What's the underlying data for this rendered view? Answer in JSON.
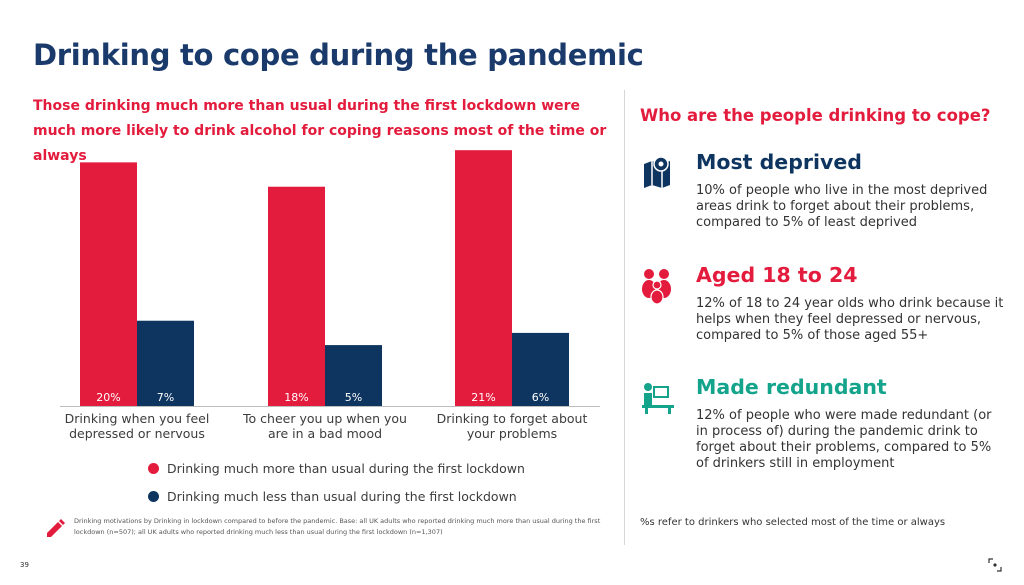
{
  "title": "Drinking to cope during the pandemic",
  "subtitle": "Those drinking much more than usual during the first lockdown were much more likely to drink alcohol for coping reasons most of the time or always",
  "chart_data": {
    "type": "bar",
    "categories": [
      [
        "Drinking when you feel",
        "depressed or nervous"
      ],
      [
        "To cheer you up when you",
        "are in a bad mood"
      ],
      [
        "Drinking to forget about",
        "your problems"
      ]
    ],
    "series": [
      {
        "name": "Drinking much more than usual during the first lockdown",
        "values": [
          20,
          18,
          21
        ],
        "labels": [
          "20%",
          "18%",
          "21%"
        ],
        "color": "#e31b3c"
      },
      {
        "name": "Drinking much less than usual during the first lockdown",
        "values": [
          7,
          5,
          6
        ],
        "labels": [
          "7%",
          "5%",
          "6%"
        ],
        "color": "#0e355f"
      }
    ],
    "ylim": [
      0,
      22
    ],
    "grid": false,
    "legend_position": "bottom"
  },
  "legend": [
    {
      "label": "Drinking much more than usual during the first lockdown",
      "color": "#e31b3c"
    },
    {
      "label": "Drinking much less than usual during the first lockdown",
      "color": "#0e355f"
    }
  ],
  "footnote": "Drinking motivations by Drinking in lockdown compared to before the pandemic. Base: all UK adults who reported drinking much more than usual during the first lockdown (n=507); all UK adults who reported drinking much less than usual during the first lockdown (n=1,307)",
  "page_number": "39",
  "right_panel": {
    "heading": "Who are the people drinking to cope?",
    "items": [
      {
        "title": "Most deprived",
        "text": "10% of people who live in the most deprived areas drink to forget about their problems, compared to 5% of least deprived",
        "icon": "map-pin-icon",
        "color": "#0e355f"
      },
      {
        "title": "Aged 18 to 24",
        "text": "12% of 18 to 24 year olds who drink because it helps when they feel depressed or nervous, compared to 5% of those aged 55+",
        "icon": "people-group-icon",
        "color": "#e31b3c"
      },
      {
        "title": "Made redundant",
        "text": "12% of people who were made redundant (or in process of) during the pandemic drink to forget about their problems, compared to 5% of drinkers still in employment",
        "icon": "person-at-desk-icon",
        "color": "#14a38b"
      }
    ],
    "note": "%s refer to drinkers who selected most of the time or always"
  }
}
